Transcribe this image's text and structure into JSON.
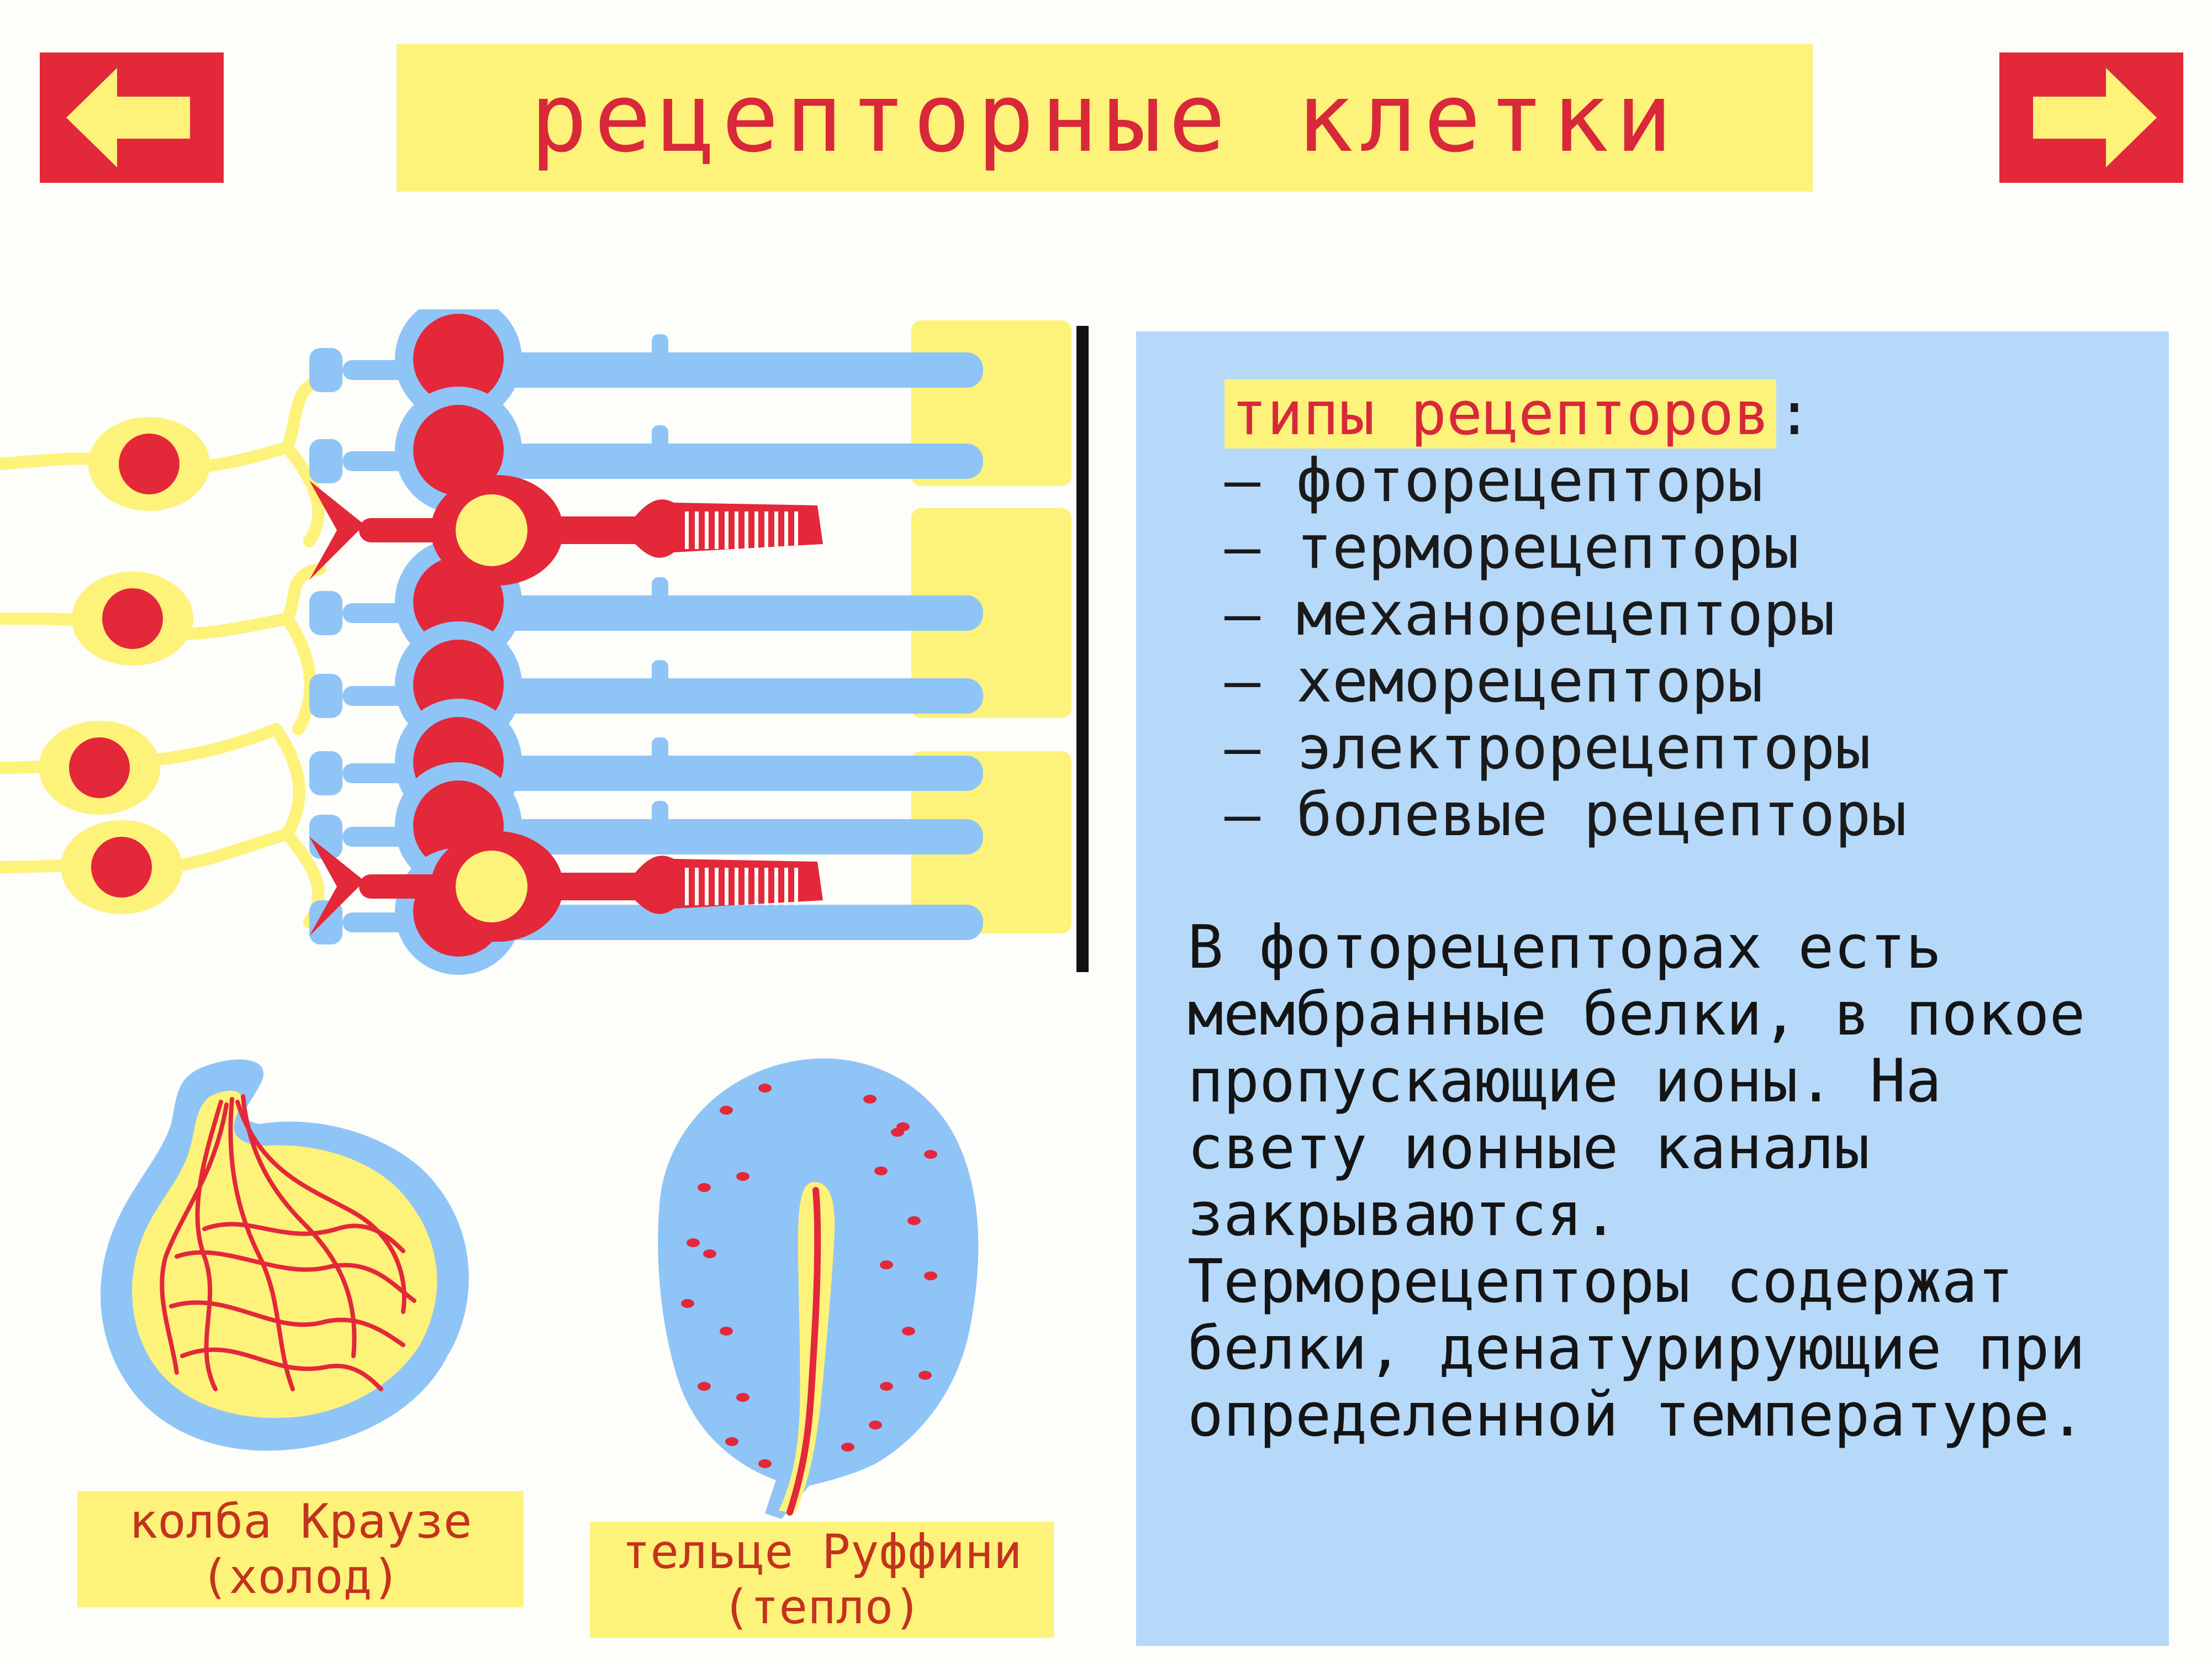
{
  "title": "рецепторные клетки",
  "nav": {
    "prev_icon": "arrow-left-icon",
    "next_icon": "arrow-right-icon"
  },
  "colors": {
    "red": "#e3283a",
    "yellow": "#fdf27a",
    "blue": "#8fc4f7",
    "panel": "#b6d9fa"
  },
  "info": {
    "types_heading": "типы рецепторов",
    "types_colon": ":",
    "types": [
      "– фоторецепторы",
      "– терморецепторы",
      "– механорецепторы",
      "– хеморецепторы",
      "– электрорецепторы",
      "– болевые рецепторы"
    ],
    "body": "В фоторецепторах есть\nмембранные белки, в покое\nпропускающие ионы. На\nсвету ионные каналы\nзакрываются.\nТерморецепторы содержат\nбелки, денатурирующие при\nопределенной температуре."
  },
  "captions": {
    "krause_line1": "колба Краузе",
    "krause_line2": "(холод)",
    "ruffini_line1": "тельце Руффини",
    "ruffini_line2": "(тепло)"
  }
}
